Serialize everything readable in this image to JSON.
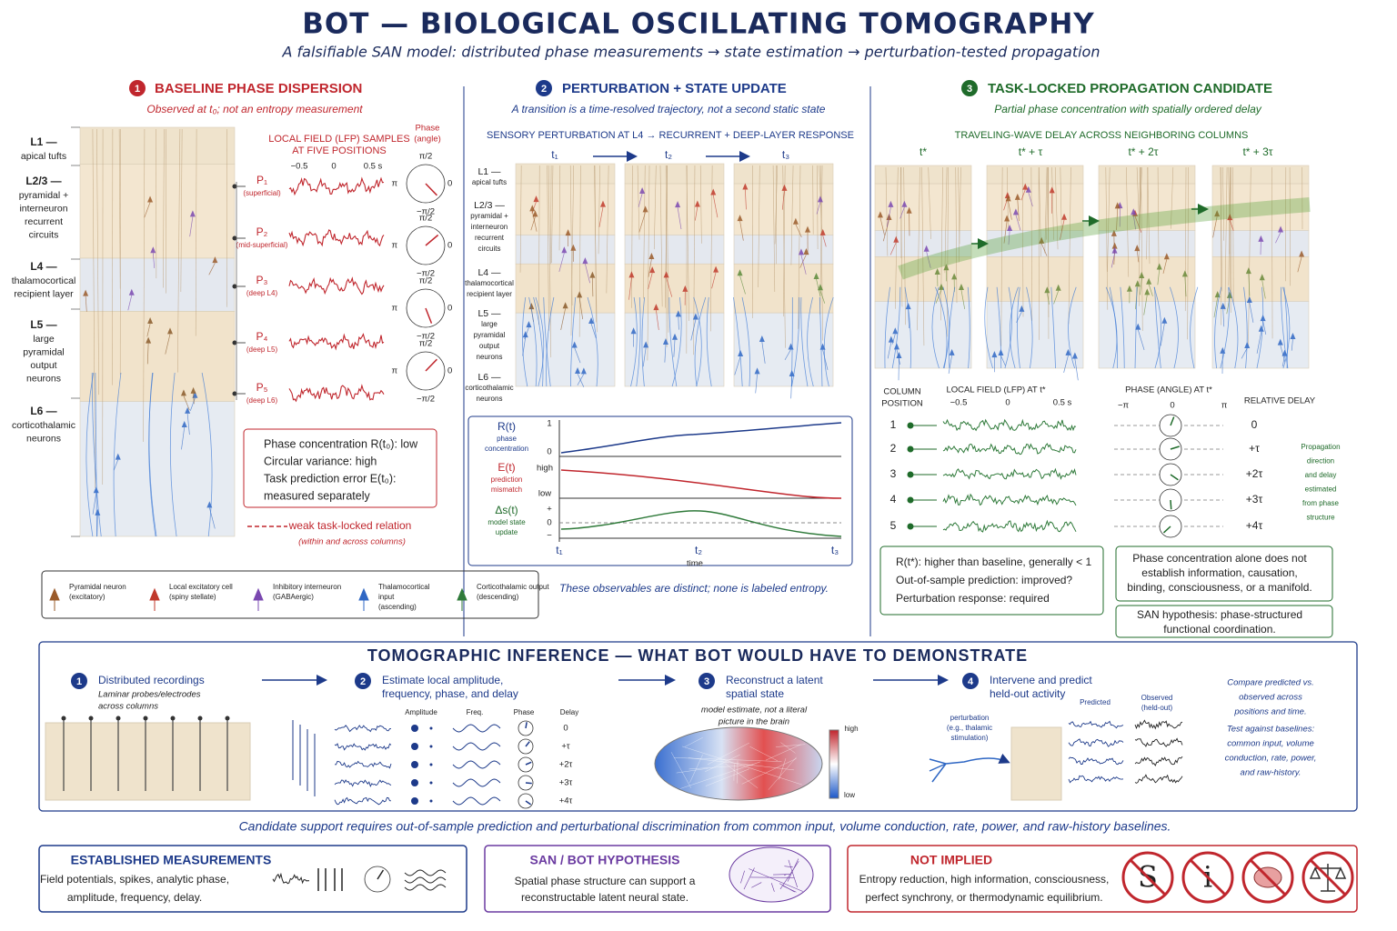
{
  "header": {
    "title": "BOT — BIOLOGICAL OSCILLATING TOMOGRAPHY",
    "subtitle": "A falsifiable SAN model: distributed phase measurements → state estimation → perturbation-tested propagation"
  },
  "panel1": {
    "number": "1",
    "title": "BASELINE PHASE DISPERSION",
    "subtitle": "Observed at t₀; not an entropy measurement",
    "layers": [
      {
        "name": "L1 —",
        "desc": [
          "apical tufts"
        ]
      },
      {
        "name": "L2/3 —",
        "desc": [
          "pyramidal +",
          "interneuron",
          "recurrent",
          "circuits"
        ]
      },
      {
        "name": "L4 —",
        "desc": [
          "thalamocortical",
          "recipient layer"
        ]
      },
      {
        "name": "L5 —",
        "desc": [
          "large",
          "pyramidal",
          "output",
          "neurons"
        ]
      },
      {
        "name": "L6 —",
        "desc": [
          "corticothalamic",
          "neurons"
        ]
      }
    ],
    "lfp_heading": [
      "LOCAL FIELD (LFP) SAMPLES",
      "AT FIVE POSITIONS"
    ],
    "time_axis": [
      "−0.5",
      "0",
      "0.5 s"
    ],
    "phase_heading": [
      "Phase",
      "(angle)"
    ],
    "probes": [
      {
        "name": "P₁",
        "position": "(superficial)"
      },
      {
        "name": "P₂",
        "position": "(mid-superficial)"
      },
      {
        "name": "P₃",
        "position": "(deep L4)"
      },
      {
        "name": "P₄",
        "position": "(deep L5)"
      },
      {
        "name": "P₅",
        "position": "(deep L6)"
      }
    ],
    "phase_labels": {
      "top": "π/2",
      "left": "π",
      "right": "0",
      "bottom": "−π/2"
    },
    "box": [
      "Phase concentration R(t₀): low",
      "Circular variance: high",
      "Task prediction error E(t₀):",
      "measured separately"
    ],
    "relation": [
      "weak task-locked relation",
      "(within and across columns)"
    ]
  },
  "legend": [
    [
      "Pyramidal neuron",
      "(excitatory)"
    ],
    [
      "Local excitatory cell",
      "(spiny stellate)"
    ],
    [
      "Inhibitory interneuron",
      "(GABAergic)"
    ],
    [
      "Thalamocortical",
      "input",
      "(ascending)"
    ],
    [
      "Corticothalamic output",
      "(descending)"
    ]
  ],
  "panel2": {
    "number": "2",
    "title": "PERTURBATION + STATE UPDATE",
    "subtitle": "A transition is a time-resolved trajectory, not a second static state",
    "heading": "SENSORY PERTURBATION AT L4 → RECURRENT + DEEP-LAYER RESPONSE",
    "times": [
      "t₁",
      "t₂",
      "t₃"
    ],
    "layers": [
      {
        "name": "L1 —",
        "desc": [
          "apical tufts"
        ]
      },
      {
        "name": "L2/3 —",
        "desc": [
          "pyramidal +",
          "interneuron",
          "recurrent",
          "circuits"
        ]
      },
      {
        "name": "L4 —",
        "desc": [
          "thalamocortical",
          "recipient layer"
        ]
      },
      {
        "name": "L5 —",
        "desc": [
          "large",
          "pyramidal",
          "output",
          "neurons"
        ]
      },
      {
        "name": "L6 —",
        "desc": [
          "corticothalamic",
          "neurons"
        ]
      }
    ],
    "plots": [
      {
        "symbol": "R(t)",
        "desc": [
          "phase",
          "concentration"
        ],
        "ticks": [
          "1",
          "0"
        ]
      },
      {
        "symbol": "E(t)",
        "desc": [
          "prediction",
          "mismatch"
        ],
        "ticks": [
          "high",
          "low"
        ]
      },
      {
        "symbol": "Δs(t)",
        "desc": [
          "model state",
          "update"
        ],
        "ticks": [
          "+",
          "0",
          "−"
        ]
      }
    ],
    "time_label": "time",
    "note": "These observables are distinct; none is labeled entropy."
  },
  "panel3": {
    "number": "3",
    "title": "TASK-LOCKED PROPAGATION CANDIDATE",
    "subtitle": "Partial phase concentration with spatially ordered delay",
    "heading": "TRAVELING-WAVE DELAY ACROSS NEIGHBORING COLUMNS",
    "times": [
      "t*",
      "t* + τ",
      "t* + 2τ",
      "t* + 3τ"
    ],
    "column_header": [
      "COLUMN",
      "POSITION"
    ],
    "lfp_header": "LOCAL FIELD (LFP) AT t*",
    "lfp_axis": [
      "−0.5",
      "0",
      "0.5 s"
    ],
    "phase_header": "PHASE (ANGLE) AT t*",
    "phase_axis": [
      "−π",
      "0",
      "π"
    ],
    "delay_header": "RELATIVE DELAY",
    "rows": [
      {
        "position": "1",
        "delay": "0"
      },
      {
        "position": "2",
        "delay": "+τ"
      },
      {
        "position": "3",
        "delay": "+2τ"
      },
      {
        "position": "4",
        "delay": "+3τ"
      },
      {
        "position": "5",
        "delay": "+4τ"
      }
    ],
    "side_note": [
      "Propagation",
      "direction",
      "and delay",
      "estimated",
      "from phase",
      "structure"
    ],
    "box_left": [
      "R(t*): higher than baseline, generally < 1",
      "Out-of-sample prediction: improved?",
      "Perturbation response: required"
    ],
    "box_right": [
      "Phase concentration alone does not",
      "establish information, causation,",
      "binding, consciousness, or a manifold."
    ],
    "box_hypothesis": [
      "SAN hypothesis: phase-structured",
      "functional coordination."
    ]
  },
  "inference": {
    "title": "TOMOGRAPHIC INFERENCE — WHAT BOT WOULD HAVE TO DEMONSTRATE",
    "steps": [
      {
        "number": "1",
        "title": [
          "Distributed recordings"
        ],
        "desc": [
          "Laminar probes/electrodes",
          "across columns"
        ]
      },
      {
        "number": "2",
        "title": [
          "Estimate local amplitude,",
          "frequency, phase, and delay"
        ],
        "desc": []
      },
      {
        "number": "3",
        "title": [
          "Reconstruct a latent",
          "spatial state"
        ],
        "desc": [
          "model estimate, not a literal",
          "picture in the brain"
        ]
      },
      {
        "number": "4",
        "title": [
          "Intervene and predict",
          "held-out activity"
        ],
        "desc": []
      }
    ],
    "params": [
      "Amplitude",
      "Freq.",
      "Phase",
      "Delay"
    ],
    "delays": [
      "0",
      "+τ",
      "+2τ",
      "+3τ",
      "+4τ"
    ],
    "scale": [
      "high",
      "low"
    ],
    "perturbation": [
      "perturbation",
      "(e.g., thalamic",
      "stimulation)"
    ],
    "predicted": "Predicted",
    "observed": [
      "Observed",
      "(held-out)"
    ],
    "compare": [
      "Compare predicted vs.",
      "observed across",
      "positions and time."
    ],
    "test": [
      "Test against baselines:",
      "common input, volume",
      "conduction, rate, power,",
      "and raw-history."
    ]
  },
  "footer": "Candidate support requires out-of-sample prediction and perturbational discrimination from common input, volume conduction, rate, power, and raw-history baselines.",
  "bottom": {
    "established": {
      "title": "ESTABLISHED MEASUREMENTS",
      "lines": [
        "Field potentials, spikes, analytic phase,",
        "amplitude, frequency, delay."
      ]
    },
    "san": {
      "title": "SAN / BOT HYPOTHESIS",
      "lines": [
        "Spatial phase structure can support a",
        "reconstructable latent neural state."
      ]
    },
    "not_implied": {
      "title": "NOT IMPLIED",
      "lines": [
        "Entropy reduction, high information, consciousness,",
        "perfect synchrony, or thermodynamic equilibrium."
      ],
      "icons": [
        "S",
        "i"
      ]
    }
  }
}
